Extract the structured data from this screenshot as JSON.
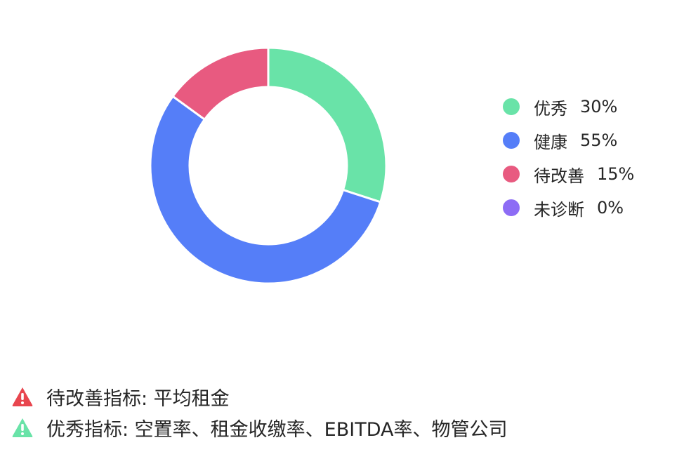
{
  "chart_data": {
    "type": "pie",
    "variant": "donut",
    "categories": [
      "优秀",
      "健康",
      "待改善",
      "未诊断"
    ],
    "values": [
      30,
      55,
      15,
      0
    ],
    "value_labels": [
      "30%",
      "55%",
      "15%",
      "0%"
    ],
    "colors": [
      "#69e3a8",
      "#557ef8",
      "#e85a80",
      "#8d6cf5"
    ],
    "legend_position": "right",
    "title": ""
  },
  "notes": [
    {
      "icon": "warning-triangle-red-icon",
      "color": "#e8464f",
      "text": "待改善指标: 平均租金"
    },
    {
      "icon": "warning-triangle-green-icon",
      "color": "#69e3a8",
      "text": "优秀指标: 空置率、租金收缴率、EBITDA率、物管公司"
    }
  ]
}
